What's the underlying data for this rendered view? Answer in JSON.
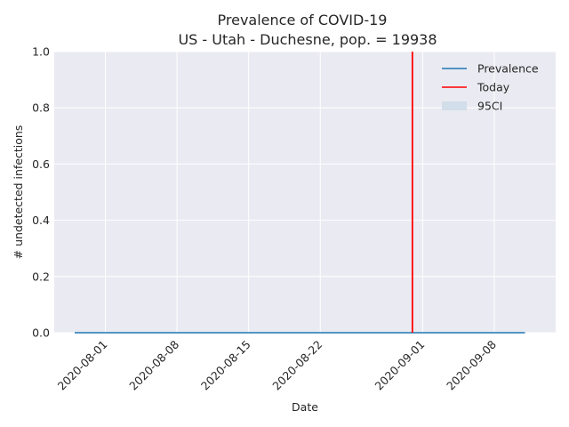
{
  "chart_data": {
    "type": "line",
    "title": "Prevalence of COVID-19",
    "subtitle": "US - Utah - Duchesne, pop. = 19938",
    "xlabel": "Date",
    "ylabel": "# undetected infections",
    "x_range": [
      "2020-07-27",
      "2020-09-14"
    ],
    "ylim": [
      0,
      1
    ],
    "x_ticks": [
      "2020-08-01",
      "2020-08-08",
      "2020-08-15",
      "2020-08-22",
      "2020-09-01",
      "2020-09-08"
    ],
    "y_ticks": [
      "0.0",
      "0.2",
      "0.4",
      "0.6",
      "0.8",
      "1.0"
    ],
    "grid": true,
    "legend_position": "top-right",
    "series": [
      {
        "name": "Prevalence",
        "color": "#1f77b4",
        "x_start": "2020-07-29",
        "x_end": "2020-09-11",
        "values": [
          0,
          0
        ]
      },
      {
        "name": "95CI",
        "color": "#c9dbea",
        "lower": [
          0,
          0
        ],
        "upper": [
          0,
          0
        ]
      }
    ],
    "today": {
      "name": "Today",
      "date": "2020-08-31",
      "color": "#ff0000"
    },
    "legend": [
      {
        "label": "Prevalence",
        "kind": "line",
        "color": "#1f77b4"
      },
      {
        "label": "Today",
        "kind": "line",
        "color": "#ff0000"
      },
      {
        "label": "95CI",
        "kind": "patch",
        "color": "#d2deea"
      }
    ]
  }
}
